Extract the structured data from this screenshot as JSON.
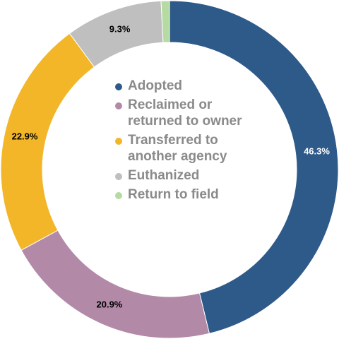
{
  "chart_data": {
    "type": "pie",
    "title": "",
    "categories": [
      "Adopted",
      "Reclaimed or returned to owner",
      "Transferred to another agency",
      "Euthanized",
      "Return to field"
    ],
    "values": [
      46.3,
      20.9,
      22.9,
      9.3,
      0.8
    ],
    "labels": [
      "46.3%",
      "20.9%",
      "22.9%",
      "9.3%",
      ""
    ],
    "colors": [
      "#2e5a8a",
      "#b389a8",
      "#f2b628",
      "#bfbfbf",
      "#b5dba2"
    ],
    "label_colors": [
      "#ffffff",
      "#000000",
      "#000000",
      "#000000",
      "#000000"
    ],
    "legend_position": "center",
    "donut": true
  },
  "legend": {
    "items": [
      {
        "label": "Adopted",
        "color": "#2e5a8a"
      },
      {
        "label": "Reclaimed or returned to owner",
        "color": "#b389a8"
      },
      {
        "label": "Transferred to another agency",
        "color": "#f2b628"
      },
      {
        "label": "Euthanized",
        "color": "#bfbfbf"
      },
      {
        "label": "Return to field",
        "color": "#b5dba2"
      }
    ]
  }
}
